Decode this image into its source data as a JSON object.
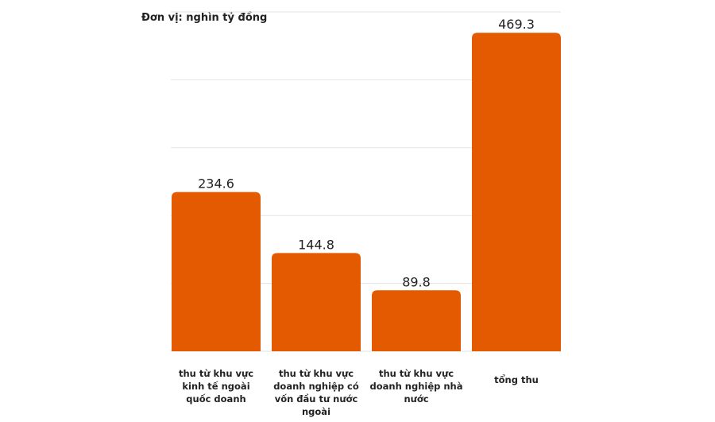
{
  "chart_data": {
    "type": "bar",
    "unit_label": "Đơn vị: nghìn tỷ đồng",
    "categories": [
      "thu từ khu vực kinh tế ngoài quốc doanh",
      "thu từ khu vực doanh nghiệp có vốn đầu tư nước ngoài",
      "thu từ khu vực doanh nghiệp nhà nước",
      "tổng thu"
    ],
    "values": [
      234.6,
      144.8,
      89.8,
      469.3
    ],
    "value_labels": [
      "234.6",
      "144.8",
      "89.8",
      "469.3"
    ],
    "ylim": [
      0,
      500
    ],
    "grid": true,
    "bar_color": "#E35A00"
  }
}
